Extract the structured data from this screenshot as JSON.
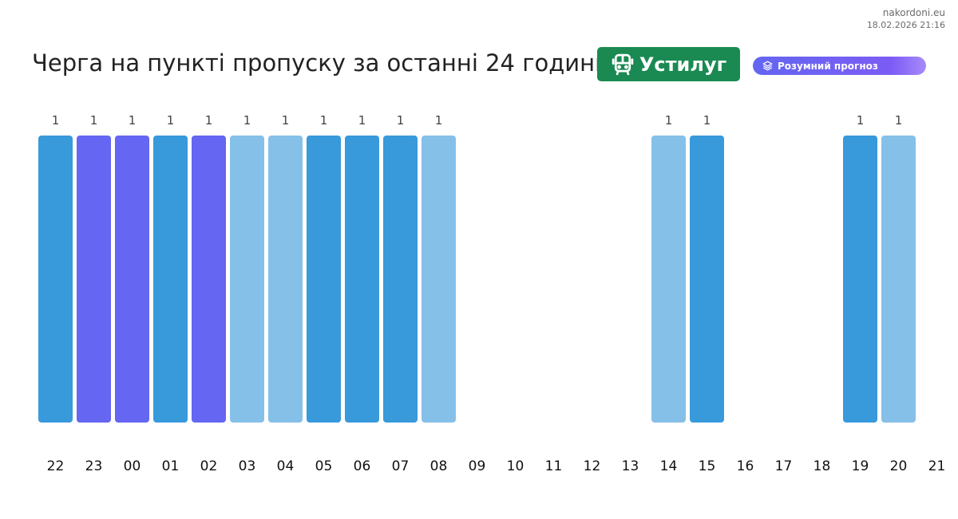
{
  "brand": {
    "site": "nakordoni.eu",
    "timestamp": "18.02.2026 21:16"
  },
  "header": {
    "title": "Черга на пункті пропуску за останні 24 години",
    "checkpoint": "Устилуг",
    "checkpoint_icon": "bus-icon",
    "forecast_label": "Розумний прогноз",
    "forecast_icon": "layers-icon"
  },
  "colors": {
    "dark_blue": "#3899db",
    "purple": "#6566f1",
    "light_blue": "#85c0e9",
    "badge_green": "#1a8a52",
    "pill_purple": "#6366f1"
  },
  "chart_data": {
    "type": "bar",
    "title": "",
    "xlabel": "",
    "ylabel": "",
    "categories": [
      "22",
      "23",
      "00",
      "01",
      "02",
      "03",
      "04",
      "05",
      "06",
      "07",
      "08",
      "09",
      "10",
      "11",
      "12",
      "13",
      "14",
      "15",
      "16",
      "17",
      "18",
      "19",
      "20",
      "21"
    ],
    "values": [
      1,
      1,
      1,
      1,
      1,
      1,
      1,
      1,
      1,
      1,
      1,
      null,
      null,
      null,
      null,
      null,
      1,
      1,
      null,
      null,
      null,
      1,
      1,
      null
    ],
    "bar_colors": [
      "dark_blue",
      "purple",
      "purple",
      "dark_blue",
      "purple",
      "light_blue",
      "light_blue",
      "dark_blue",
      "dark_blue",
      "dark_blue",
      "light_blue",
      null,
      null,
      null,
      null,
      null,
      "light_blue",
      "dark_blue",
      null,
      null,
      null,
      "dark_blue",
      "light_blue",
      null
    ],
    "ylim": [
      0,
      1
    ],
    "grid": false,
    "data_labels": true
  }
}
